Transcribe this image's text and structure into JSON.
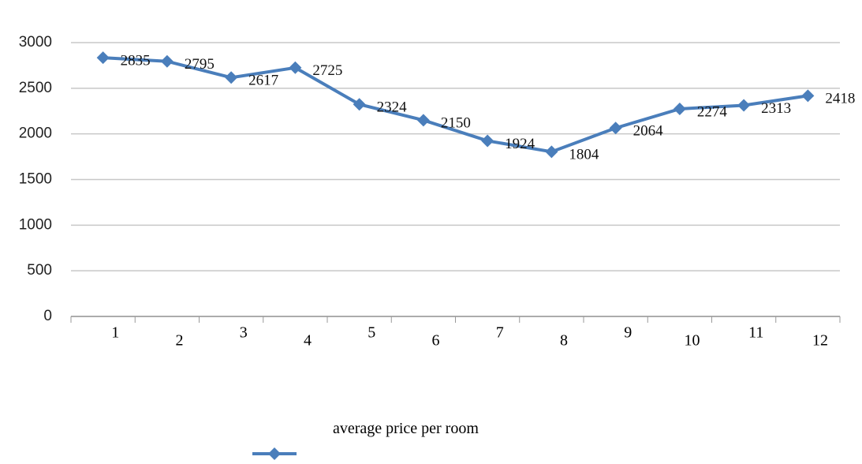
{
  "chart_data": {
    "type": "line",
    "categories": [
      "1",
      "2",
      "3",
      "4",
      "5",
      "6",
      "7",
      "8",
      "9",
      "10",
      "11",
      "12"
    ],
    "series": [
      {
        "name": "average price per room",
        "color": "#4a7ebb",
        "values": [
          2835,
          2795,
          2617,
          2725,
          2324,
          2150,
          1924,
          1804,
          2064,
          2274,
          2313,
          2418
        ]
      }
    ],
    "ylim": [
      0,
      3000
    ],
    "yticks": [
      0,
      500,
      1000,
      1500,
      2000,
      2500,
      3000
    ],
    "grid": true,
    "legend": "bottom"
  }
}
